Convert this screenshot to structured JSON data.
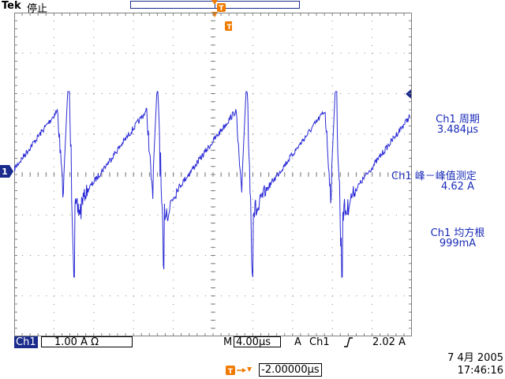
{
  "header": {
    "brand": "Tek",
    "status": "停止",
    "trigger_marker": "T"
  },
  "channel_marker": "1",
  "measurements": [
    {
      "label": "Ch1 周期",
      "value": "3.484μs"
    },
    {
      "label": "Ch1 峰－峰值测定",
      "value": "4.62 A"
    },
    {
      "label": "Ch1 均方根",
      "value": "999mA"
    }
  ],
  "bottom": {
    "channel": "Ch1",
    "scale": "1.00 A Ω",
    "timebase_prefix": "M",
    "timebase": "4.00μs",
    "trigger_label": "A",
    "trigger_channel": "Ch1",
    "trigger_slope_icon": "rising-edge",
    "trigger_level": "2.02 A"
  },
  "trigger_position": {
    "icon": "T→",
    "value": "-2.00000μs"
  },
  "datetime": {
    "date": "7 4月  2005",
    "time": "17:46:16"
  },
  "colors": {
    "trace": "#2a2ad6",
    "accent_orange": "#f07a00",
    "channel_blue": "#1a2b8c",
    "grid": "#808080"
  }
}
